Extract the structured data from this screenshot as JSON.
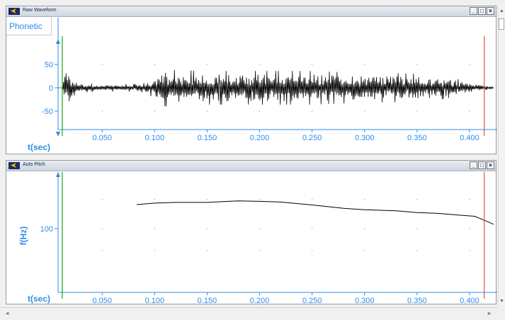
{
  "panes": [
    {
      "title": "Raw Waveform",
      "annotation_tab": "Phonetic",
      "x_label": "t(sec)",
      "y_label": "",
      "y_ticks": [
        "50",
        "0",
        "-50"
      ],
      "x_ticks": [
        "0.050",
        "0.100",
        "0.150",
        "0.200",
        "0.250",
        "0.300",
        "0.350",
        "0.400"
      ]
    },
    {
      "title": "Auto Pitch",
      "x_label": "t(sec)",
      "y_label": "f(Hz)",
      "y_ticks": [
        "100"
      ],
      "x_ticks": [
        "0.050",
        "0.100",
        "0.150",
        "0.200",
        "0.250",
        "0.300",
        "0.350",
        "0.400"
      ]
    }
  ],
  "window_buttons": {
    "minimize": "_",
    "maximize": "□",
    "close": "×"
  },
  "scrollbars": {
    "up": "▲",
    "down": "▼",
    "left": "◄",
    "right": "►"
  },
  "colors": {
    "axis": "#2d8de8",
    "start_cursor": "#1aa31a",
    "end_cursor": "#e0532e",
    "trace": "#000000"
  },
  "chart_data": [
    {
      "type": "line",
      "title": "Raw Waveform",
      "xlabel": "t(sec)",
      "ylabel": "",
      "xlim": [
        0.008,
        0.423
      ],
      "ylim": [
        -90,
        90
      ],
      "grid": true,
      "cursors": {
        "start": 0.012,
        "end": 0.414
      },
      "envelope": {
        "t": [
          0.012,
          0.016,
          0.018,
          0.022,
          0.03,
          0.05,
          0.08,
          0.09,
          0.1,
          0.11,
          0.12,
          0.15,
          0.2,
          0.25,
          0.3,
          0.35,
          0.37,
          0.39,
          0.41,
          0.42
        ],
        "amp": [
          4,
          60,
          40,
          18,
          10,
          8,
          8,
          10,
          22,
          40,
          38,
          36,
          36,
          36,
          32,
          30,
          26,
          18,
          8,
          4
        ]
      }
    },
    {
      "type": "line",
      "title": "Auto Pitch",
      "xlabel": "t(sec)",
      "ylabel": "f(Hz)",
      "xlim": [
        0.008,
        0.423
      ],
      "ylim": [
        75,
        150
      ],
      "grid": true,
      "cursors": {
        "start": 0.012,
        "end": 0.414
      },
      "x": [
        0.083,
        0.1,
        0.12,
        0.15,
        0.17,
        0.18,
        0.2,
        0.22,
        0.25,
        0.28,
        0.3,
        0.33,
        0.35,
        0.37,
        0.39,
        0.405,
        0.415,
        0.423
      ],
      "y": [
        133,
        135,
        136,
        136,
        137.5,
        138,
        137.5,
        136.5,
        132.5,
        128,
        126,
        124.5,
        122,
        121,
        118.5,
        117,
        111,
        106
      ]
    }
  ]
}
